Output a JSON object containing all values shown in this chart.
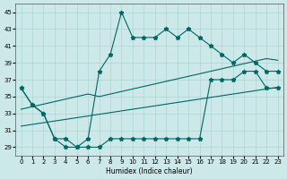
{
  "xlabel": "Humidex (Indice chaleur)",
  "x": [
    0,
    1,
    2,
    3,
    4,
    5,
    6,
    7,
    8,
    9,
    10,
    11,
    12,
    13,
    14,
    15,
    16,
    17,
    18,
    19,
    20,
    21,
    22,
    23
  ],
  "y_main": [
    36,
    34,
    33,
    30,
    30,
    29,
    30,
    38,
    40,
    45,
    42,
    42,
    42,
    43,
    42,
    43,
    42,
    41,
    40,
    39,
    40,
    39,
    38,
    38
  ],
  "y_lower": [
    36,
    34,
    33,
    30,
    29,
    29,
    29,
    29,
    30,
    30,
    30,
    30,
    30,
    30,
    30,
    30,
    30,
    37,
    37,
    37,
    38,
    38,
    36,
    36
  ],
  "y_trend_upper": [
    33.5,
    33.8,
    34.1,
    34.4,
    34.7,
    35.0,
    35.3,
    35.0,
    35.3,
    35.6,
    35.9,
    36.2,
    36.5,
    36.8,
    37.1,
    37.4,
    37.7,
    38.0,
    38.3,
    38.6,
    38.9,
    39.2,
    39.5,
    39.3
  ],
  "y_trend_lower": [
    31.5,
    31.7,
    31.9,
    32.1,
    32.3,
    32.5,
    32.7,
    32.9,
    33.1,
    33.3,
    33.5,
    33.7,
    33.9,
    34.1,
    34.3,
    34.5,
    34.7,
    34.9,
    35.1,
    35.3,
    35.5,
    35.7,
    35.9,
    36.1
  ],
  "bg_color": "#cce8e8",
  "grid_color": "#aad4d4",
  "line_color": "#006666",
  "ylim": [
    28,
    46
  ],
  "yticks": [
    29,
    31,
    33,
    35,
    37,
    39,
    41,
    43,
    45
  ],
  "xticks": [
    0,
    1,
    2,
    3,
    4,
    5,
    6,
    7,
    8,
    9,
    10,
    11,
    12,
    13,
    14,
    15,
    16,
    17,
    18,
    19,
    20,
    21,
    22,
    23
  ]
}
